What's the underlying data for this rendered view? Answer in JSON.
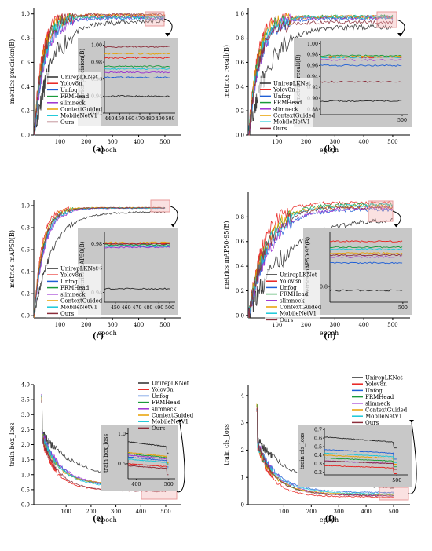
{
  "colors": {
    "UnirepLKNet": "#2b2b2b",
    "Yolov8n": "#e8201c",
    "Unfog": "#1f5fd6",
    "FRMHead": "#1a9a3a",
    "slimneck": "#9b30d0",
    "ContextGuided": "#e8a000",
    "MobileNetV1": "#18c8d8",
    "Ours": "#8b2d3a"
  },
  "legend_labels": [
    "UnirepLKNet",
    "Yolov8n",
    "Unfog",
    "FRMHead",
    "slimneck",
    "ContextGuided",
    "MobileNetV1",
    "Ours"
  ],
  "chart_data": [
    {
      "type": "line",
      "caption": "(a)",
      "xlabel": "epoch",
      "ylabel": "metrics precision(B)",
      "xlim": [
        0,
        560
      ],
      "ylim": [
        0,
        1.05
      ],
      "xticks": [
        100,
        200,
        300,
        400,
        500
      ],
      "yticks": [
        0.0,
        0.2,
        0.4,
        0.6,
        0.8,
        1.0
      ],
      "final_values": {
        "UnirepLKNet": 0.94,
        "Yolov8n": 0.985,
        "Unfog": 0.962,
        "FRMHead": 0.975,
        "slimneck": 0.968,
        "ContextGuided": 0.99,
        "MobileNetV1": 0.972,
        "Ours": 0.998
      },
      "inset": {
        "ylabel": "metrics precision(B)",
        "xlim": [
          435,
          505
        ],
        "ylim": [
          0.92,
          1.005
        ],
        "xticks": [
          440,
          450,
          460,
          470,
          480,
          490,
          500
        ],
        "yticks": [
          0.92,
          0.94,
          0.96,
          0.98,
          1.0
        ]
      }
    },
    {
      "type": "line",
      "caption": "(b)",
      "xlabel": "epoch",
      "ylabel": "metrics recall(B)",
      "xlim": [
        0,
        560
      ],
      "ylim": [
        0,
        1.05
      ],
      "xticks": [
        100,
        200,
        300,
        400,
        500
      ],
      "yticks": [
        0.0,
        0.2,
        0.4,
        0.6,
        0.8,
        1.0
      ],
      "final_values": {
        "UnirepLKNet": 0.895,
        "Yolov8n": 0.975,
        "Unfog": 0.96,
        "FRMHead": 0.978,
        "slimneck": 0.97,
        "ContextGuided": 0.976,
        "MobileNetV1": 0.975,
        "Ours": 0.93
      },
      "inset": {
        "ylabel": "metrics recall(B)",
        "xlim": [
          435,
          505
        ],
        "ylim": [
          0.87,
          1.005
        ],
        "xticks": [
          500
        ],
        "yticks": [
          0.88,
          0.9,
          0.92,
          0.94,
          0.96,
          0.98,
          1.0
        ]
      }
    },
    {
      "type": "line",
      "caption": "(c)",
      "xlabel": "epoch",
      "ylabel": "metrics mAP50(B)",
      "xlim": [
        0,
        560
      ],
      "ylim": [
        -0.02,
        1.05
      ],
      "xticks": [
        100,
        200,
        300,
        400,
        500
      ],
      "yticks": [
        0.0,
        0.2,
        0.4,
        0.6,
        0.8,
        1.0
      ],
      "final_values": {
        "UnirepLKNet": 0.943,
        "Yolov8n": 0.98,
        "Unfog": 0.978,
        "FRMHead": 0.979,
        "slimneck": 0.977,
        "ContextGuided": 0.981,
        "MobileNetV1": 0.978,
        "Ours": 0.98
      },
      "inset": {
        "ylabel": "metrics mAP50(B)",
        "xlim": [
          440,
          505
        ],
        "ylim": [
          0.932,
          0.99
        ],
        "xticks": [
          450,
          460,
          470,
          480,
          490,
          500
        ],
        "yticks": [
          0.94,
          0.96,
          0.98
        ]
      }
    },
    {
      "type": "line",
      "caption": "(d)",
      "xlabel": "epoch",
      "ylabel": "metrics mAP50-95(B)",
      "xlim": [
        0,
        560
      ],
      "ylim": [
        -0.02,
        1.0
      ],
      "xticks": [
        100,
        200,
        300,
        400,
        500
      ],
      "yticks": [
        0.0,
        0.2,
        0.4,
        0.6,
        0.8
      ],
      "final_values": {
        "UnirepLKNet": 0.79,
        "Yolov8n": 0.915,
        "Unfog": 0.86,
        "FRMHead": 0.9,
        "slimneck": 0.875,
        "ContextGuided": 0.885,
        "MobileNetV1": 0.895,
        "Ours": 0.88
      },
      "inset": {
        "ylabel": "metrics mAP50-95(B)",
        "xlim": [
          435,
          505
        ],
        "ylim": [
          0.76,
          0.94
        ],
        "xticks": [
          500
        ],
        "yticks": [
          0.8
        ]
      }
    },
    {
      "type": "line",
      "caption": "(e)",
      "xlabel": "epoch",
      "ylabel": "train box_loss",
      "xlim": [
        -30,
        560
      ],
      "ylim": [
        0,
        4.0
      ],
      "xticks": [
        100,
        200,
        300,
        400,
        500
      ],
      "yticks": [
        0.0,
        0.5,
        1.0,
        1.5,
        2.0,
        2.5,
        3.0,
        3.5,
        4.0
      ],
      "final_values": {
        "UnirepLKNet": 0.78,
        "Yolov8n": 0.45,
        "Unfog": 0.55,
        "FRMHead": 0.6,
        "slimneck": 0.58,
        "ContextGuided": 0.62,
        "MobileNetV1": 0.52,
        "Ours": 0.42
      },
      "inset": {
        "ylabel": "train box_loss",
        "xlim": [
          375,
          520
        ],
        "ylim": [
          0.25,
          1.1
        ],
        "xticks": [
          400,
          500
        ],
        "yticks": [
          0.5,
          1.0
        ]
      }
    },
    {
      "type": "line",
      "caption": "(f)",
      "xlabel": "epoch",
      "ylabel": "train cls_loss",
      "xlim": [
        -30,
        560
      ],
      "ylim": [
        0,
        4.4
      ],
      "xticks": [
        100,
        200,
        300,
        400,
        500
      ],
      "yticks": [
        0,
        1,
        2,
        3,
        4
      ],
      "final_values": {
        "UnirepLKNet": 0.55,
        "Yolov8n": 0.25,
        "Unfog": 0.42,
        "FRMHead": 0.33,
        "slimneck": 0.3,
        "ContextGuided": 0.36,
        "MobileNetV1": 0.38,
        "Ours": 0.3
      },
      "inset": {
        "ylabel": "train cls_loss",
        "xlim": [
          375,
          520
        ],
        "ylim": [
          0.17,
          0.72
        ],
        "xticks": [
          500
        ],
        "yticks": [
          0.2,
          0.3,
          0.4,
          0.5,
          0.6,
          0.7
        ]
      }
    }
  ]
}
